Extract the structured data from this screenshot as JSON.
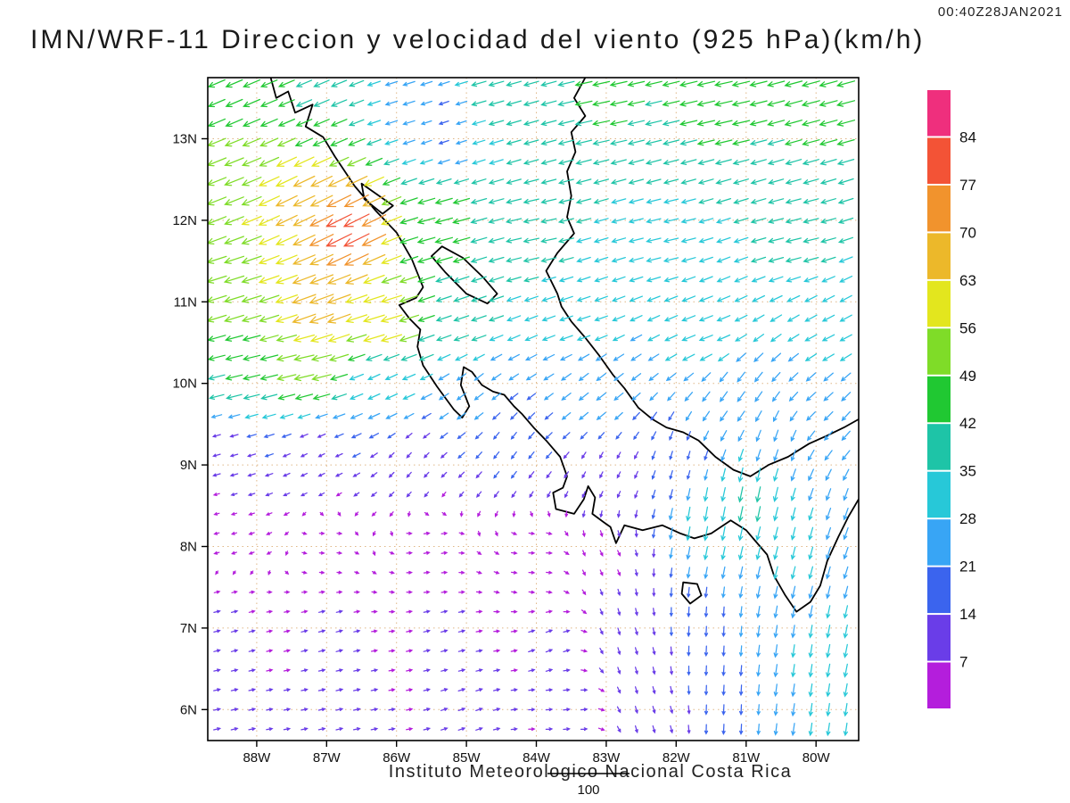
{
  "header": {
    "timestamp": "00:40Z28JAN2021",
    "title": "IMN/WRF-11 Direccion y velocidad del viento (925 hPa)(km/h)"
  },
  "footer": {
    "text": "Instituto Meteorologico Nacional Costa Rica"
  },
  "chart_data": {
    "type": "vector_field",
    "title": "IMN/WRF-11 Direccion y velocidad del viento (925 hPa)(km/h)",
    "timestamp": "00:40Z28JAN2021",
    "footer": "Instituto Meteorologico Nacional Costa Rica",
    "model": "IMN/WRF-11",
    "variable": "Direccion y velocidad del viento",
    "level": "925 hPa",
    "units": "km/h",
    "x_axis": {
      "labels": [
        "88W",
        "87W",
        "86W",
        "85W",
        "84W",
        "83W",
        "82W",
        "81W",
        "80W"
      ],
      "values": [
        -88,
        -87,
        -86,
        -85,
        -84,
        -83,
        -82,
        -81,
        -80
      ],
      "range": [
        -88.7,
        -79.39
      ]
    },
    "y_axis": {
      "labels": [
        "6N",
        "7N",
        "8N",
        "9N",
        "10N",
        "11N",
        "12N",
        "13N"
      ],
      "values": [
        6,
        7,
        8,
        9,
        10,
        11,
        12,
        13
      ],
      "range": [
        5.62,
        13.75
      ]
    },
    "colorbar": {
      "levels": [
        7,
        14,
        21,
        28,
        35,
        42,
        49,
        56,
        63,
        70,
        77,
        84
      ],
      "colors": [
        "#b41edc",
        "#6a3de8",
        "#3b64ee",
        "#38a5f5",
        "#27c8d8",
        "#1ec4a7",
        "#20c832",
        "#7fdc28",
        "#e3e61e",
        "#ecb82a",
        "#f1932d",
        "#f35336",
        "#ef2f7d"
      ]
    },
    "reference_vector": {
      "speed": 100,
      "label": "100"
    },
    "arrow_grid": {
      "lon_step": 0.25,
      "lat_step": 0.24
    },
    "wind_samples": [
      [
        -88.4,
        13.6,
        -42,
        -18
      ],
      [
        -87.2,
        13.5,
        -38,
        -16
      ],
      [
        -85.9,
        13.4,
        -26,
        -8
      ],
      [
        -85.3,
        13.2,
        -18,
        -6
      ],
      [
        -84.6,
        13.5,
        -36,
        -10
      ],
      [
        -83.0,
        13.5,
        -42,
        -9
      ],
      [
        -81.4,
        13.5,
        -44,
        -10
      ],
      [
        -79.8,
        13.5,
        -45,
        -12
      ],
      [
        -88.5,
        12.4,
        -50,
        -20
      ],
      [
        -87.4,
        12.2,
        -58,
        -28
      ],
      [
        -86.7,
        11.9,
        -72,
        -36
      ],
      [
        -85.4,
        11.9,
        -44,
        -12
      ],
      [
        -84.0,
        11.8,
        -37,
        -8
      ],
      [
        -82.2,
        11.8,
        -34,
        -8
      ],
      [
        -80.3,
        11.8,
        -37,
        -9
      ],
      [
        -88.4,
        11.1,
        -52,
        -16
      ],
      [
        -87.1,
        10.9,
        -66,
        -24
      ],
      [
        -86.2,
        10.7,
        -57,
        -17
      ],
      [
        -85.0,
        10.8,
        -36,
        -12
      ],
      [
        -83.4,
        10.8,
        -30,
        -10
      ],
      [
        -81.6,
        10.7,
        -31,
        -12
      ],
      [
        -79.8,
        10.6,
        -27,
        -14
      ],
      [
        -88.2,
        10.2,
        -42,
        -10
      ],
      [
        -87.3,
        10.3,
        -52,
        -12
      ],
      [
        -86.2,
        10.0,
        -26,
        -12
      ],
      [
        -84.9,
        9.9,
        -18,
        -14
      ],
      [
        -83.2,
        9.9,
        -20,
        -16
      ],
      [
        -81.2,
        9.8,
        -16,
        -22
      ],
      [
        -79.9,
        9.8,
        -20,
        -18
      ],
      [
        -79.6,
        9.5,
        -18,
        -20
      ],
      [
        -88.5,
        9.1,
        -11,
        -3
      ],
      [
        -87.2,
        9.0,
        -8,
        -4
      ],
      [
        -85.8,
        9.0,
        -6,
        -7
      ],
      [
        -84.4,
        9.2,
        -9,
        -12
      ],
      [
        -83.0,
        8.9,
        -4,
        -8
      ],
      [
        -81.9,
        9.0,
        -4,
        -14
      ],
      [
        -80.6,
        9.2,
        -8,
        -24
      ],
      [
        -88.5,
        8.3,
        -4,
        -1
      ],
      [
        -87.0,
        8.1,
        3,
        0
      ],
      [
        -85.5,
        8.0,
        6,
        1
      ],
      [
        -84.0,
        7.9,
        6,
        0
      ],
      [
        -82.9,
        7.9,
        3,
        -6
      ],
      [
        -81.6,
        8.4,
        -6,
        -34
      ],
      [
        -80.9,
        8.6,
        -8,
        -38
      ],
      [
        -80.4,
        8.1,
        -7,
        -28
      ],
      [
        -79.6,
        8.4,
        -9,
        -26
      ],
      [
        -88.5,
        7.0,
        8,
        2
      ],
      [
        -87.0,
        6.9,
        8,
        2
      ],
      [
        -85.3,
        6.9,
        8,
        2
      ],
      [
        -83.8,
        6.8,
        8,
        3
      ],
      [
        -82.6,
        6.8,
        3,
        -10
      ],
      [
        -81.5,
        6.9,
        -1,
        -20
      ],
      [
        -80.3,
        6.6,
        -4,
        -28
      ],
      [
        -79.6,
        6.6,
        -6,
        -30
      ],
      [
        -88.5,
        6.0,
        9,
        2
      ],
      [
        -86.8,
        6.0,
        9,
        2
      ],
      [
        -85.0,
        6.0,
        9,
        3
      ],
      [
        -83.5,
        6.0,
        8,
        1
      ],
      [
        -82.3,
        6.0,
        3,
        -10
      ],
      [
        -81.2,
        6.0,
        -1,
        -20
      ],
      [
        -79.9,
        5.9,
        -4,
        -28
      ]
    ],
    "coastlines": [
      [
        [
          -87.8,
          13.75
        ],
        [
          -87.72,
          13.5
        ],
        [
          -87.55,
          13.58
        ],
        [
          -87.45,
          13.32
        ],
        [
          -87.2,
          13.42
        ],
        [
          -87.3,
          13.15
        ],
        [
          -87.05,
          13.02
        ],
        [
          -86.88,
          12.78
        ],
        [
          -86.6,
          12.42
        ],
        [
          -86.3,
          12.12
        ],
        [
          -86.0,
          11.85
        ],
        [
          -85.78,
          11.52
        ],
        [
          -85.62,
          11.18
        ],
        [
          -85.72,
          11.05
        ],
        [
          -85.96,
          10.96
        ],
        [
          -85.82,
          10.8
        ],
        [
          -85.66,
          10.66
        ],
        [
          -85.7,
          10.45
        ],
        [
          -85.62,
          10.22
        ],
        [
          -85.42,
          9.96
        ],
        [
          -85.18,
          9.68
        ],
        [
          -85.06,
          9.58
        ],
        [
          -84.96,
          9.72
        ],
        [
          -85.08,
          9.98
        ],
        [
          -85.04,
          10.2
        ],
        [
          -84.92,
          10.14
        ],
        [
          -84.78,
          9.98
        ],
        [
          -84.62,
          9.9
        ],
        [
          -84.46,
          9.86
        ],
        [
          -84.32,
          9.72
        ],
        [
          -84.2,
          9.62
        ],
        [
          -84.04,
          9.46
        ],
        [
          -83.86,
          9.3
        ],
        [
          -83.66,
          9.1
        ],
        [
          -83.56,
          8.86
        ],
        [
          -83.62,
          8.72
        ],
        [
          -83.76,
          8.66
        ],
        [
          -83.72,
          8.46
        ],
        [
          -83.46,
          8.4
        ],
        [
          -83.32,
          8.58
        ],
        [
          -83.26,
          8.74
        ],
        [
          -83.16,
          8.6
        ],
        [
          -83.2,
          8.4
        ],
        [
          -83.04,
          8.3
        ],
        [
          -82.94,
          8.24
        ],
        [
          -82.86,
          8.04
        ],
        [
          -82.74,
          8.26
        ],
        [
          -82.48,
          8.2
        ],
        [
          -82.2,
          8.26
        ],
        [
          -81.94,
          8.16
        ],
        [
          -81.74,
          8.1
        ],
        [
          -81.5,
          8.16
        ],
        [
          -81.22,
          8.32
        ],
        [
          -81.0,
          8.2
        ],
        [
          -80.86,
          8.06
        ],
        [
          -80.7,
          7.9
        ],
        [
          -80.6,
          7.64
        ],
        [
          -80.44,
          7.4
        ],
        [
          -80.28,
          7.2
        ],
        [
          -80.08,
          7.32
        ],
        [
          -79.94,
          7.52
        ],
        [
          -79.84,
          7.82
        ],
        [
          -79.68,
          8.12
        ],
        [
          -79.54,
          8.36
        ],
        [
          -79.39,
          8.58
        ]
      ],
      [
        [
          -83.3,
          13.75
        ],
        [
          -83.46,
          13.5
        ],
        [
          -83.3,
          13.28
        ],
        [
          -83.5,
          13.08
        ],
        [
          -83.44,
          12.84
        ],
        [
          -83.56,
          12.6
        ],
        [
          -83.5,
          12.3
        ],
        [
          -83.56,
          12.04
        ],
        [
          -83.46,
          11.84
        ],
        [
          -83.7,
          11.6
        ],
        [
          -83.86,
          11.38
        ],
        [
          -83.7,
          11.1
        ],
        [
          -83.64,
          10.94
        ],
        [
          -83.5,
          10.76
        ],
        [
          -83.3,
          10.56
        ],
        [
          -83.1,
          10.34
        ],
        [
          -82.9,
          10.1
        ],
        [
          -82.74,
          9.94
        ],
        [
          -82.54,
          9.7
        ],
        [
          -82.34,
          9.56
        ],
        [
          -82.14,
          9.46
        ],
        [
          -81.9,
          9.4
        ],
        [
          -81.68,
          9.3
        ],
        [
          -81.44,
          9.1
        ],
        [
          -81.18,
          8.94
        ],
        [
          -80.94,
          8.86
        ],
        [
          -80.68,
          9.0
        ],
        [
          -80.4,
          9.1
        ],
        [
          -80.1,
          9.26
        ],
        [
          -79.84,
          9.36
        ],
        [
          -79.6,
          9.46
        ],
        [
          -79.39,
          9.56
        ]
      ]
    ],
    "lakes": [
      [
        [
          -85.35,
          11.68
        ],
        [
          -85.05,
          11.54
        ],
        [
          -84.76,
          11.3
        ],
        [
          -84.56,
          11.1
        ],
        [
          -84.7,
          10.98
        ],
        [
          -85.0,
          11.1
        ],
        [
          -85.3,
          11.36
        ],
        [
          -85.5,
          11.56
        ]
      ],
      [
        [
          -86.5,
          12.45
        ],
        [
          -86.25,
          12.3
        ],
        [
          -86.05,
          12.18
        ],
        [
          -86.2,
          12.08
        ],
        [
          -86.46,
          12.26
        ]
      ],
      [
        [
          -81.9,
          7.56
        ],
        [
          -81.7,
          7.54
        ],
        [
          -81.64,
          7.4
        ],
        [
          -81.8,
          7.3
        ],
        [
          -81.92,
          7.42
        ]
      ]
    ]
  }
}
